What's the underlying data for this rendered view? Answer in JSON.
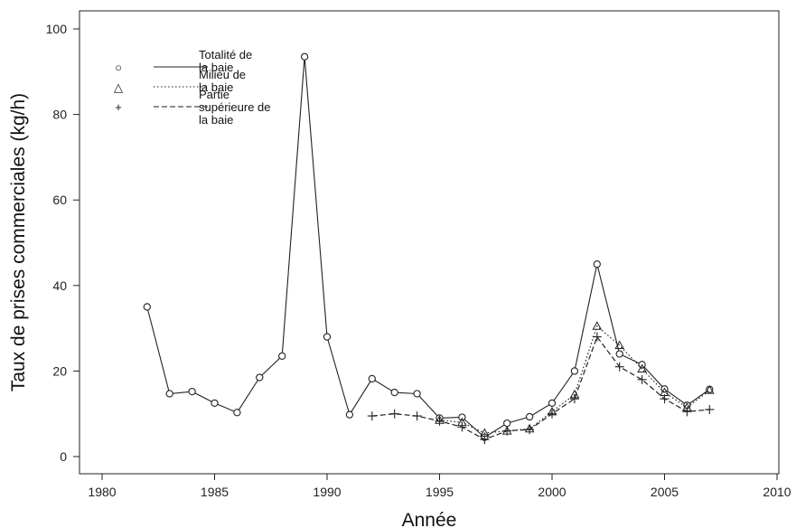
{
  "chart_data": {
    "type": "line",
    "xlabel": "Année",
    "ylabel": "Taux de prises commerciales (kg/h)",
    "xlim": [
      1980,
      2010
    ],
    "ylim": [
      0,
      100
    ],
    "xticks": [
      "1980",
      "1985",
      "1990",
      "1995",
      "2000",
      "2005",
      "2010"
    ],
    "yticks": [
      "0",
      "20",
      "40",
      "60",
      "80",
      "100"
    ],
    "grid": false,
    "legend_position": "top-left",
    "legend": [
      {
        "lines": [
          "Totalité de",
          "la baie"
        ],
        "marker": "○",
        "style": "solid"
      },
      {
        "lines": [
          "Milieu de",
          "la baie"
        ],
        "marker": "△",
        "style": "dotted"
      },
      {
        "lines": [
          "Partie",
          "supérieure de",
          "la baie"
        ],
        "marker": "+",
        "style": "dashed"
      }
    ],
    "series": [
      {
        "marker": "circle",
        "style": "solid",
        "x": [
          1982,
          1983,
          1984,
          1985,
          1986,
          1987,
          1988,
          1989,
          1990,
          1991,
          1992,
          1993,
          1994,
          1995,
          1996,
          1997,
          1998,
          1999,
          2000,
          2001,
          2002,
          2003,
          2004,
          2005,
          2006,
          2007
        ],
        "y": [
          35,
          14.7,
          15.2,
          12.5,
          10.3,
          18.5,
          23.5,
          93.5,
          28,
          9.8,
          18.2,
          15,
          14.7,
          9,
          9.2,
          4.5,
          7.8,
          9.3,
          12.5,
          20,
          45,
          24,
          21.5,
          15.8,
          12,
          15.7
        ]
      },
      {
        "marker": "triangle",
        "style": "dotted",
        "x": [
          1995,
          1996,
          1997,
          1998,
          1999,
          2000,
          2001,
          2002,
          2003,
          2004,
          2005,
          2006,
          2007
        ],
        "y": [
          8.5,
          8,
          5.5,
          6,
          6.5,
          10.5,
          14.5,
          30.5,
          26,
          20.5,
          15,
          11.5,
          15.5
        ]
      },
      {
        "marker": "plus",
        "style": "dashed",
        "x": [
          1992,
          1993,
          1994,
          1995,
          1996,
          1997,
          1998,
          1999,
          2000,
          2001,
          2002,
          2003,
          2004,
          2005,
          2006,
          2007
        ],
        "y": [
          9.5,
          10,
          9.5,
          8.3,
          6.9,
          4,
          6,
          6.3,
          10,
          13.5,
          28,
          21,
          18,
          13.5,
          10.5,
          11
        ]
      }
    ]
  }
}
